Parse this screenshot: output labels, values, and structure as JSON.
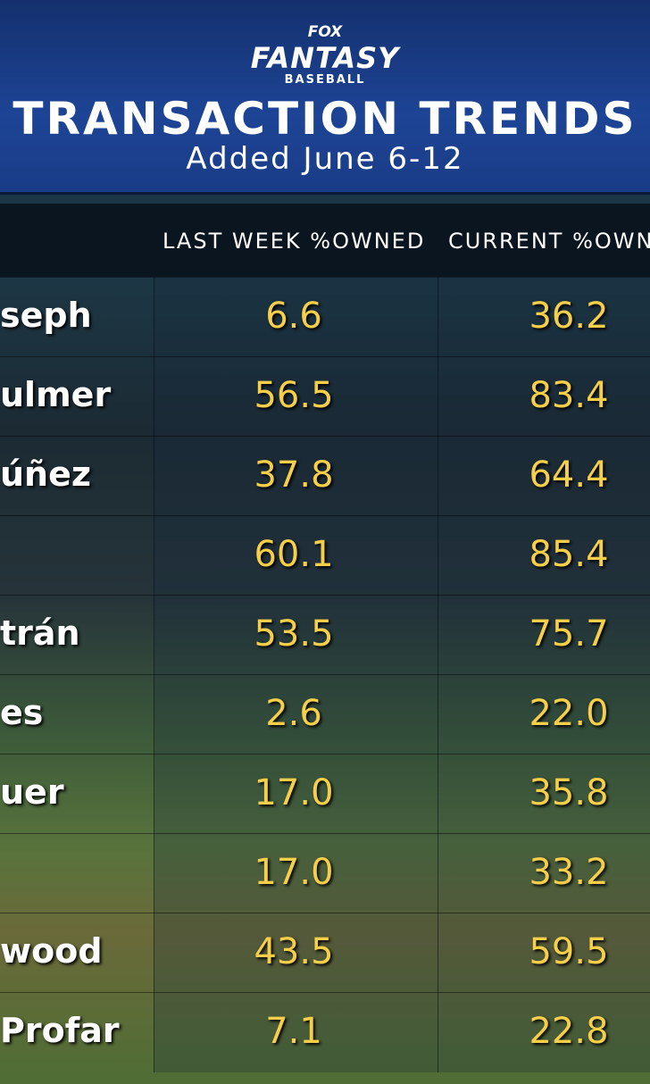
{
  "header": {
    "logo_top": "FOX",
    "logo_main": "FANTASY",
    "logo_sub": "BASEBALL",
    "title": "TRANSACTION TRENDS",
    "subtitle": "Added June 6-12"
  },
  "table": {
    "columns": [
      "LAST WEEK %OWNED",
      "CURRENT %OWNE"
    ],
    "rows": [
      {
        "name": "seph",
        "last_week": "6.6",
        "current": "36.2"
      },
      {
        "name": "ulmer",
        "last_week": "56.5",
        "current": "83.4"
      },
      {
        "name": "úñez",
        "last_week": "37.8",
        "current": "64.4"
      },
      {
        "last_week": "60.1",
        "current": "85.4"
      },
      {
        "name": "trán",
        "last_week": "53.5",
        "current": "75.7"
      },
      {
        "name": "es",
        "last_week": "2.6",
        "current": "22.0"
      },
      {
        "name": "uer",
        "last_week": "17.0",
        "current": "35.8"
      },
      {
        "last_week": "17.0",
        "current": "33.2"
      },
      {
        "name": "wood",
        "last_week": "43.5",
        "current": "59.5"
      },
      {
        "name": "Profar",
        "last_week": "7.1",
        "current": "22.8"
      }
    ]
  }
}
